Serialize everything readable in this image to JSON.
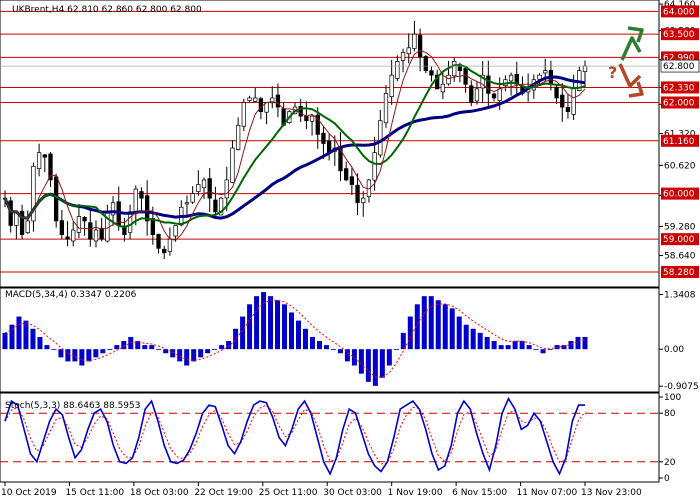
{
  "header": {
    "symbol_info": "UKBrent,H4  62.810 62.860 62.800 62.800"
  },
  "chart_data": {
    "type": "candlestick",
    "symbol": "UKBrent",
    "timeframe": "H4",
    "ohlc_current": {
      "open": 62.81,
      "high": 62.86,
      "low": 62.8,
      "close": 62.8
    },
    "price_axis": {
      "range": [
        57.95,
        64.25
      ],
      "ticks": [
        "64.160",
        "63.580",
        "62.940",
        "62.330",
        "61.960",
        "61.320",
        "60.620",
        "59.960",
        "59.280",
        "58.640"
      ],
      "current_price": "62.800"
    },
    "support_resistance_levels": [
      {
        "value": 64.0,
        "label": "64.000"
      },
      {
        "value": 63.5,
        "label": "63.500"
      },
      {
        "value": 62.99,
        "label": "62.990"
      },
      {
        "value": 62.33,
        "label": "62.330"
      },
      {
        "value": 62.0,
        "label": "62.000"
      },
      {
        "value": 61.16,
        "label": "61.160"
      },
      {
        "value": 60.0,
        "label": "60.000"
      },
      {
        "value": 59.0,
        "label": "59.000"
      },
      {
        "value": 58.28,
        "label": "58.280"
      }
    ],
    "time_axis": [
      "10 Oct 2019",
      "15 Oct 11:00",
      "18 Oct 03:00",
      "22 Oct 19:00",
      "25 Oct 11:00",
      "30 Oct 03:00",
      "1 Nov 19:00",
      "6 Nov 15:00",
      "11 Nov 07:00",
      "13 Nov 23:00"
    ],
    "price_path": [
      59.9,
      59.3,
      59.6,
      59.1,
      59.4,
      60.6,
      60.9,
      60.8,
      60.3,
      59.4,
      59.1,
      59.0,
      59.2,
      59.5,
      59.4,
      59.0,
      59.2,
      59.0,
      59.6,
      59.8,
      59.3,
      59.1,
      59.6,
      60.1,
      59.9,
      59.4,
      59.1,
      58.8,
      58.7,
      59.0,
      59.3,
      59.7,
      59.8,
      60.0,
      60.2,
      60.3,
      59.9,
      59.6,
      59.9,
      60.3,
      61.0,
      61.5,
      62.0,
      62.1,
      62.1,
      61.8,
      62.0,
      62.1,
      61.9,
      61.5,
      61.8,
      61.9,
      61.7,
      61.6,
      61.7,
      61.3,
      61.1,
      60.9,
      61.0,
      60.5,
      60.3,
      60.2,
      59.8,
      59.9,
      60.3,
      60.9,
      61.6,
      62.2,
      62.6,
      62.9,
      63.1,
      63.2,
      63.5,
      63.0,
      62.7,
      62.6,
      62.3,
      62.4,
      62.6,
      62.9,
      62.7,
      62.4,
      62.0,
      62.3,
      62.6,
      62.2,
      62.1,
      62.3,
      62.5,
      62.6,
      62.4,
      62.2,
      62.3,
      62.5,
      62.6,
      62.7,
      62.4,
      62.1,
      61.9,
      61.8,
      62.3,
      62.7,
      62.8
    ],
    "moving_averages": [
      {
        "name": "MA navy",
        "color": "#000080"
      },
      {
        "name": "MA green",
        "color": "#006400"
      },
      {
        "name": "MA brown",
        "color": "#8b1a1a"
      }
    ],
    "forecast_arrows": {
      "up_color": "#2e7d32",
      "down_color": "#b5462a",
      "question_color": "#b5462a",
      "question_text": "?"
    },
    "macd": {
      "label": "MACD(5,34,4) 0.3347 0.2206",
      "params": "5,34,4",
      "main": 0.3347,
      "signal": 0.2206,
      "axis_ticks": [
        "1.3408",
        "0.00",
        "-0.9075"
      ],
      "range": [
        -1.05,
        1.5
      ],
      "histogram": [
        0.4,
        0.6,
        0.8,
        0.7,
        0.5,
        0.3,
        0.1,
        0.0,
        -0.2,
        -0.3,
        -0.3,
        -0.4,
        -0.3,
        -0.2,
        -0.1,
        0.0,
        0.1,
        0.2,
        0.3,
        0.2,
        0.1,
        0.1,
        0.0,
        -0.1,
        -0.2,
        -0.3,
        -0.4,
        -0.3,
        -0.2,
        -0.1,
        0.0,
        0.1,
        0.2,
        0.5,
        0.8,
        1.1,
        1.3,
        1.4,
        1.3,
        1.2,
        1.1,
        0.9,
        0.7,
        0.5,
        0.3,
        0.2,
        0.1,
        0.0,
        -0.1,
        -0.3,
        -0.4,
        -0.6,
        -0.8,
        -0.9,
        -0.7,
        -0.4,
        0.0,
        0.4,
        0.8,
        1.1,
        1.3,
        1.3,
        1.2,
        1.1,
        1.0,
        0.8,
        0.6,
        0.5,
        0.4,
        0.3,
        0.2,
        0.1,
        0.1,
        0.2,
        0.2,
        0.1,
        0.0,
        -0.1,
        0.0,
        0.1,
        0.1,
        0.2,
        0.3,
        0.3
      ],
      "colors": {
        "histogram": "#0000cc",
        "signal": "#ff0000"
      }
    },
    "stochastic": {
      "label": "Stoch(5,3,3) 88.6463 88.5953",
      "params": "5,3,3",
      "k": 88.6463,
      "d": 88.5953,
      "axis_ticks": [
        "100",
        "80",
        "20",
        "0"
      ],
      "levels": [
        80,
        20
      ],
      "k_values": [
        70,
        95,
        90,
        60,
        30,
        20,
        45,
        70,
        85,
        78,
        50,
        25,
        35,
        60,
        80,
        85,
        70,
        40,
        20,
        18,
        25,
        50,
        85,
        95,
        70,
        40,
        20,
        18,
        22,
        35,
        55,
        80,
        90,
        88,
        65,
        40,
        30,
        45,
        70,
        90,
        95,
        93,
        75,
        50,
        40,
        60,
        85,
        95,
        80,
        50,
        20,
        5,
        25,
        60,
        85,
        80,
        55,
        30,
        15,
        8,
        20,
        50,
        85,
        90,
        95,
        85,
        60,
        30,
        10,
        15,
        40,
        80,
        95,
        85,
        55,
        30,
        10,
        40,
        80,
        98,
        85,
        60,
        65,
        80,
        70,
        45,
        20,
        5,
        25,
        70,
        90,
        90
      ],
      "colors": {
        "k": "#0000cc",
        "d": "#ff0000",
        "levels": "#cc0000"
      }
    }
  }
}
